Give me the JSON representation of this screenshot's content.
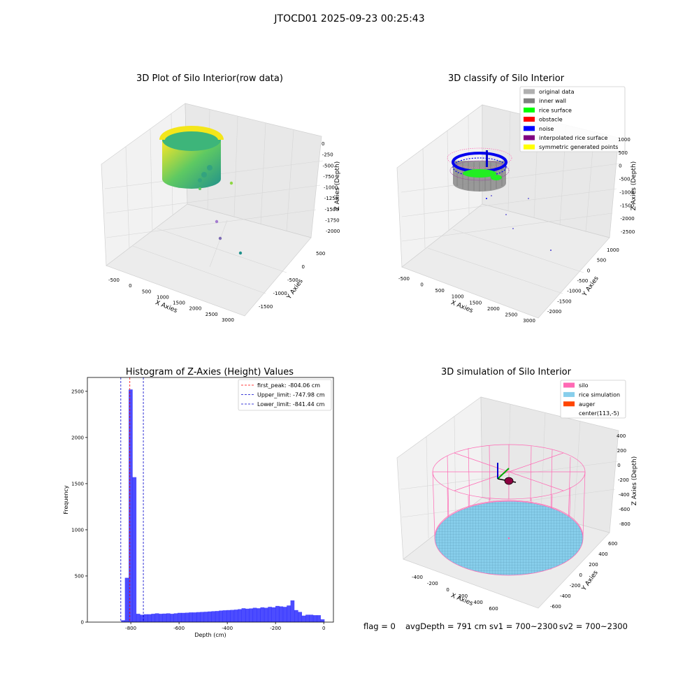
{
  "figure": {
    "suptitle": "JTOCD01 2025-09-23 00:25:43"
  },
  "footer": {
    "flag": "flag = 0",
    "avg_depth": "avgDepth = 791 cm",
    "sv1": "sv1 = 700~2300",
    "sv2": "sv2 = 700~2300"
  },
  "colors": {
    "hist_bar": "#0000ff",
    "first_peak_line": "#ff0000",
    "limit_lines": "#0000cc",
    "silo": "#ff69b4",
    "rice_simulation": "#87ceeb",
    "auger": "#ff4500",
    "inner_wall": "#808080",
    "rice_surface": "#00ff00",
    "noise": "#0000ff"
  },
  "chart_data": [
    {
      "type": "scatter3d",
      "title": "3D Plot of Silo Interior(row data)",
      "xlabel": "X Axies",
      "ylabel": "Y Axies",
      "zlabel": "Z Axies (Depth)",
      "xticks": [
        "-500",
        "0",
        "500",
        "1000",
        "1500",
        "2000",
        "2500",
        "3000"
      ],
      "yticks": [
        "-1500",
        "-1000",
        "-500",
        "0",
        "500"
      ],
      "zticks": [
        "0",
        "-250",
        "-500",
        "-750",
        "-1000",
        "-1250",
        "-1500",
        "-1750",
        "-2000"
      ],
      "colormap": "viridis"
    },
    {
      "type": "scatter3d",
      "title": "3D classify of Silo Interior",
      "xlabel": "X Axies",
      "ylabel": "Y Axies",
      "zlabel": "Z Axies (Depth)",
      "xticks": [
        "-500",
        "0",
        "500",
        "1000",
        "1500",
        "2000",
        "2500",
        "3000"
      ],
      "yticks": [
        "-2000",
        "-1500",
        "-1000",
        "-500",
        "0",
        "500",
        "1000"
      ],
      "zticks": [
        "1000",
        "500",
        "0",
        "-500",
        "-1000",
        "-1500",
        "-2000",
        "-2500"
      ],
      "legend_position": "top-right",
      "legend": [
        {
          "label": "original data",
          "color": "#b0b0b0"
        },
        {
          "label": "inner wall",
          "color": "#808080"
        },
        {
          "label": "rice surface",
          "color": "#00ff00"
        },
        {
          "label": "obstacle",
          "color": "#ff0000"
        },
        {
          "label": "noise",
          "color": "#0000ff"
        },
        {
          "label": "interpolated rice surface",
          "color": "#800080"
        },
        {
          "label": "symmetric generated points",
          "color": "#ffff00"
        }
      ]
    },
    {
      "type": "bar",
      "title": "Histogram of Z-Axies (Height) Values",
      "xlabel": "Depth (cm)",
      "ylabel": "Frequency",
      "xlim": [
        -980,
        40
      ],
      "ylim": [
        0,
        2650
      ],
      "xticks": [
        -800,
        -600,
        -400,
        -200,
        0
      ],
      "yticks": [
        0,
        500,
        1000,
        1500,
        2000,
        2500
      ],
      "bin_width": 15.6,
      "bins": [
        [
          -840,
          20
        ],
        [
          -824.4,
          480
        ],
        [
          -808.8,
          2520
        ],
        [
          -793.2,
          1570
        ],
        [
          -777.6,
          90
        ],
        [
          -762,
          80
        ],
        [
          -746.4,
          85
        ],
        [
          -730.8,
          85
        ],
        [
          -715.2,
          90
        ],
        [
          -699.6,
          95
        ],
        [
          -684,
          90
        ],
        [
          -668.4,
          92
        ],
        [
          -652.8,
          95
        ],
        [
          -637.2,
          90
        ],
        [
          -621.6,
          95
        ],
        [
          -606,
          100
        ],
        [
          -590.4,
          100
        ],
        [
          -574.8,
          102
        ],
        [
          -559.2,
          105
        ],
        [
          -543.6,
          105
        ],
        [
          -528,
          108
        ],
        [
          -512.4,
          110
        ],
        [
          -496.8,
          112
        ],
        [
          -481.2,
          115
        ],
        [
          -465.6,
          118
        ],
        [
          -450,
          120
        ],
        [
          -434.4,
          125
        ],
        [
          -418.8,
          128
        ],
        [
          -403.2,
          130
        ],
        [
          -387.6,
          132
        ],
        [
          -372,
          135
        ],
        [
          -356.4,
          140
        ],
        [
          -340.8,
          150
        ],
        [
          -325.2,
          145
        ],
        [
          -309.6,
          148
        ],
        [
          -294,
          155
        ],
        [
          -278.4,
          150
        ],
        [
          -262.8,
          160
        ],
        [
          -247.2,
          155
        ],
        [
          -231.6,
          165
        ],
        [
          -216,
          160
        ],
        [
          -200.4,
          175
        ],
        [
          -184.8,
          170
        ],
        [
          -169.2,
          165
        ],
        [
          -153.6,
          180
        ],
        [
          -138,
          235
        ],
        [
          -122.4,
          130
        ],
        [
          -106.8,
          110
        ],
        [
          -91.2,
          70
        ],
        [
          -75.6,
          80
        ],
        [
          -60,
          80
        ],
        [
          -44.4,
          75
        ],
        [
          -28.8,
          75
        ],
        [
          -13.2,
          30
        ]
      ],
      "vlines": [
        {
          "label": "first_peak: -804.06 cm",
          "x": -804.06,
          "color": "#ff0000"
        },
        {
          "label": "Upper_limit: -747.98 cm",
          "x": -747.98,
          "color": "#0000cc"
        },
        {
          "label": "Lower_limit: -841.44 cm",
          "x": -841.44,
          "color": "#0000cc"
        }
      ],
      "legend_position": "top-right"
    },
    {
      "type": "surface3d",
      "title": "3D simulation of Silo Interior",
      "xlabel": "X Axies",
      "ylabel": "Y Axies",
      "zlabel": "Z Axies (Depth)",
      "xticks": [
        "-400",
        "-200",
        "0",
        "200",
        "400",
        "600"
      ],
      "yticks": [
        "-600",
        "-400",
        "-200",
        "0",
        "200",
        "400",
        "600"
      ],
      "zticks": [
        "400",
        "200",
        "0",
        "-200",
        "-400",
        "-600",
        "-800"
      ],
      "legend_position": "top-right",
      "legend": [
        {
          "label": "silo",
          "color": "#ff69b4"
        },
        {
          "label": "rice simulation",
          "color": "#87ceeb"
        },
        {
          "label": "auger",
          "color": "#ff4500"
        },
        {
          "label": "center(113,-5)",
          "color": "#ffffff"
        }
      ]
    }
  ]
}
